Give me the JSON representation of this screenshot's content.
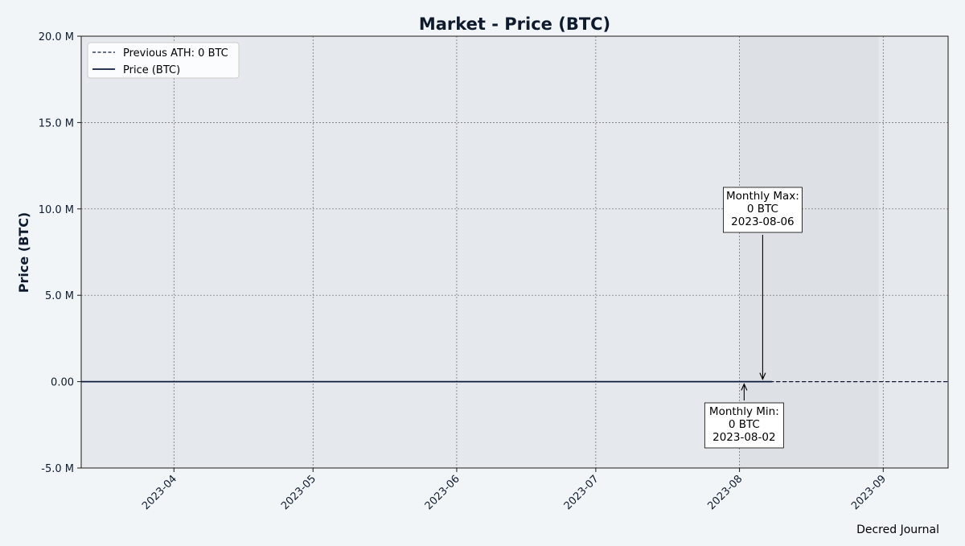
{
  "chart_data": {
    "type": "line",
    "title": "Market - Price (BTC)",
    "xlabel": "",
    "ylabel": "Price (BTC)",
    "ylim": [
      -5000000,
      20000000
    ],
    "xlim": [
      "2023-03-12",
      "2023-09-15"
    ],
    "yticks": [
      {
        "value": -5000000,
        "label": "-5.0 M"
      },
      {
        "value": 0,
        "label": "0.00"
      },
      {
        "value": 5000000,
        "label": "5.0 M"
      },
      {
        "value": 10000000,
        "label": "10.0 M"
      },
      {
        "value": 15000000,
        "label": "15.0 M"
      },
      {
        "value": 20000000,
        "label": "20.0 M"
      }
    ],
    "xticks": [
      {
        "value": "2023-04-01",
        "label": "2023-04"
      },
      {
        "value": "2023-05-01",
        "label": "2023-05"
      },
      {
        "value": "2023-06-01",
        "label": "2023-06"
      },
      {
        "value": "2023-07-01",
        "label": "2023-07"
      },
      {
        "value": "2023-08-01",
        "label": "2023-08"
      },
      {
        "value": "2023-09-01",
        "label": "2023-09"
      }
    ],
    "grid": true,
    "legend_position": "top-left",
    "highlight_range": [
      "2023-08-01",
      "2023-08-31"
    ],
    "series": [
      {
        "name": "Price (BTC)",
        "style": "solid",
        "color": "#0f1b3d",
        "points": [
          {
            "x": "2023-03-12",
            "y": 0
          },
          {
            "x": "2023-04-01",
            "y": 0
          },
          {
            "x": "2023-05-01",
            "y": 0
          },
          {
            "x": "2023-06-01",
            "y": 0
          },
          {
            "x": "2023-07-01",
            "y": 0
          },
          {
            "x": "2023-08-01",
            "y": 0
          },
          {
            "x": "2023-08-08",
            "y": 0
          }
        ]
      }
    ],
    "reference_lines": [
      {
        "name": "Previous ATH: 0 BTC",
        "style": "dashed",
        "color": "#0f1b3d",
        "y": 0
      }
    ],
    "annotations": [
      {
        "lines": [
          "Monthly Max:",
          "0 BTC",
          "2023-08-06"
        ],
        "x": "2023-08-06",
        "y": 0,
        "placement": "above"
      },
      {
        "lines": [
          "Monthly Min:",
          "0 BTC",
          "2023-08-02"
        ],
        "x": "2023-08-02",
        "y": 0,
        "placement": "below"
      }
    ],
    "credit": "Decred Journal"
  },
  "colors": {
    "page_background": "#f2f5f7",
    "plot_background": "#e5e9ed",
    "highlight_background": "#dde1e6",
    "text": "#0f1b2d",
    "grid": "#666666"
  }
}
